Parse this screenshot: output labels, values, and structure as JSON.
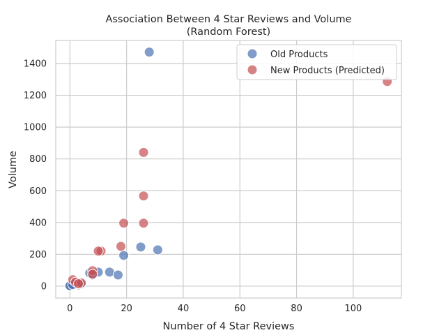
{
  "chart_data": {
    "type": "scatter",
    "title": "Association Between 4 Star Reviews and Volume",
    "subtitle": "(Random Forest)",
    "xlabel": "Number of 4 Star Reviews",
    "ylabel": "Volume",
    "xlim": [
      -5,
      117
    ],
    "ylim": [
      -75,
      1545
    ],
    "xticks": [
      0,
      20,
      40,
      60,
      80,
      100
    ],
    "yticks": [
      0,
      200,
      400,
      600,
      800,
      1000,
      1200,
      1400
    ],
    "grid": true,
    "legend_position": "top-right",
    "series": [
      {
        "name": "Old Products",
        "color": "#4c72b0",
        "points": [
          [
            28,
            1472
          ],
          [
            25,
            246
          ],
          [
            31,
            228
          ],
          [
            19,
            193
          ],
          [
            14,
            88
          ],
          [
            10,
            88
          ],
          [
            17,
            70
          ],
          [
            7,
            82
          ],
          [
            8,
            70
          ],
          [
            3,
            8
          ],
          [
            2,
            12
          ],
          [
            1,
            15
          ],
          [
            0,
            5
          ],
          [
            0,
            2
          ],
          [
            1,
            10
          ],
          [
            4,
            14
          ]
        ]
      },
      {
        "name": "New Products (Predicted)",
        "color": "#c44e52",
        "points": [
          [
            112,
            1287
          ],
          [
            26,
            841
          ],
          [
            26,
            567
          ],
          [
            19,
            396
          ],
          [
            26,
            396
          ],
          [
            18,
            250
          ],
          [
            11,
            220
          ],
          [
            10,
            220
          ],
          [
            8,
            97
          ],
          [
            8,
            75
          ],
          [
            1,
            40
          ],
          [
            2,
            25
          ],
          [
            4,
            20
          ],
          [
            3,
            15
          ]
        ]
      }
    ]
  }
}
